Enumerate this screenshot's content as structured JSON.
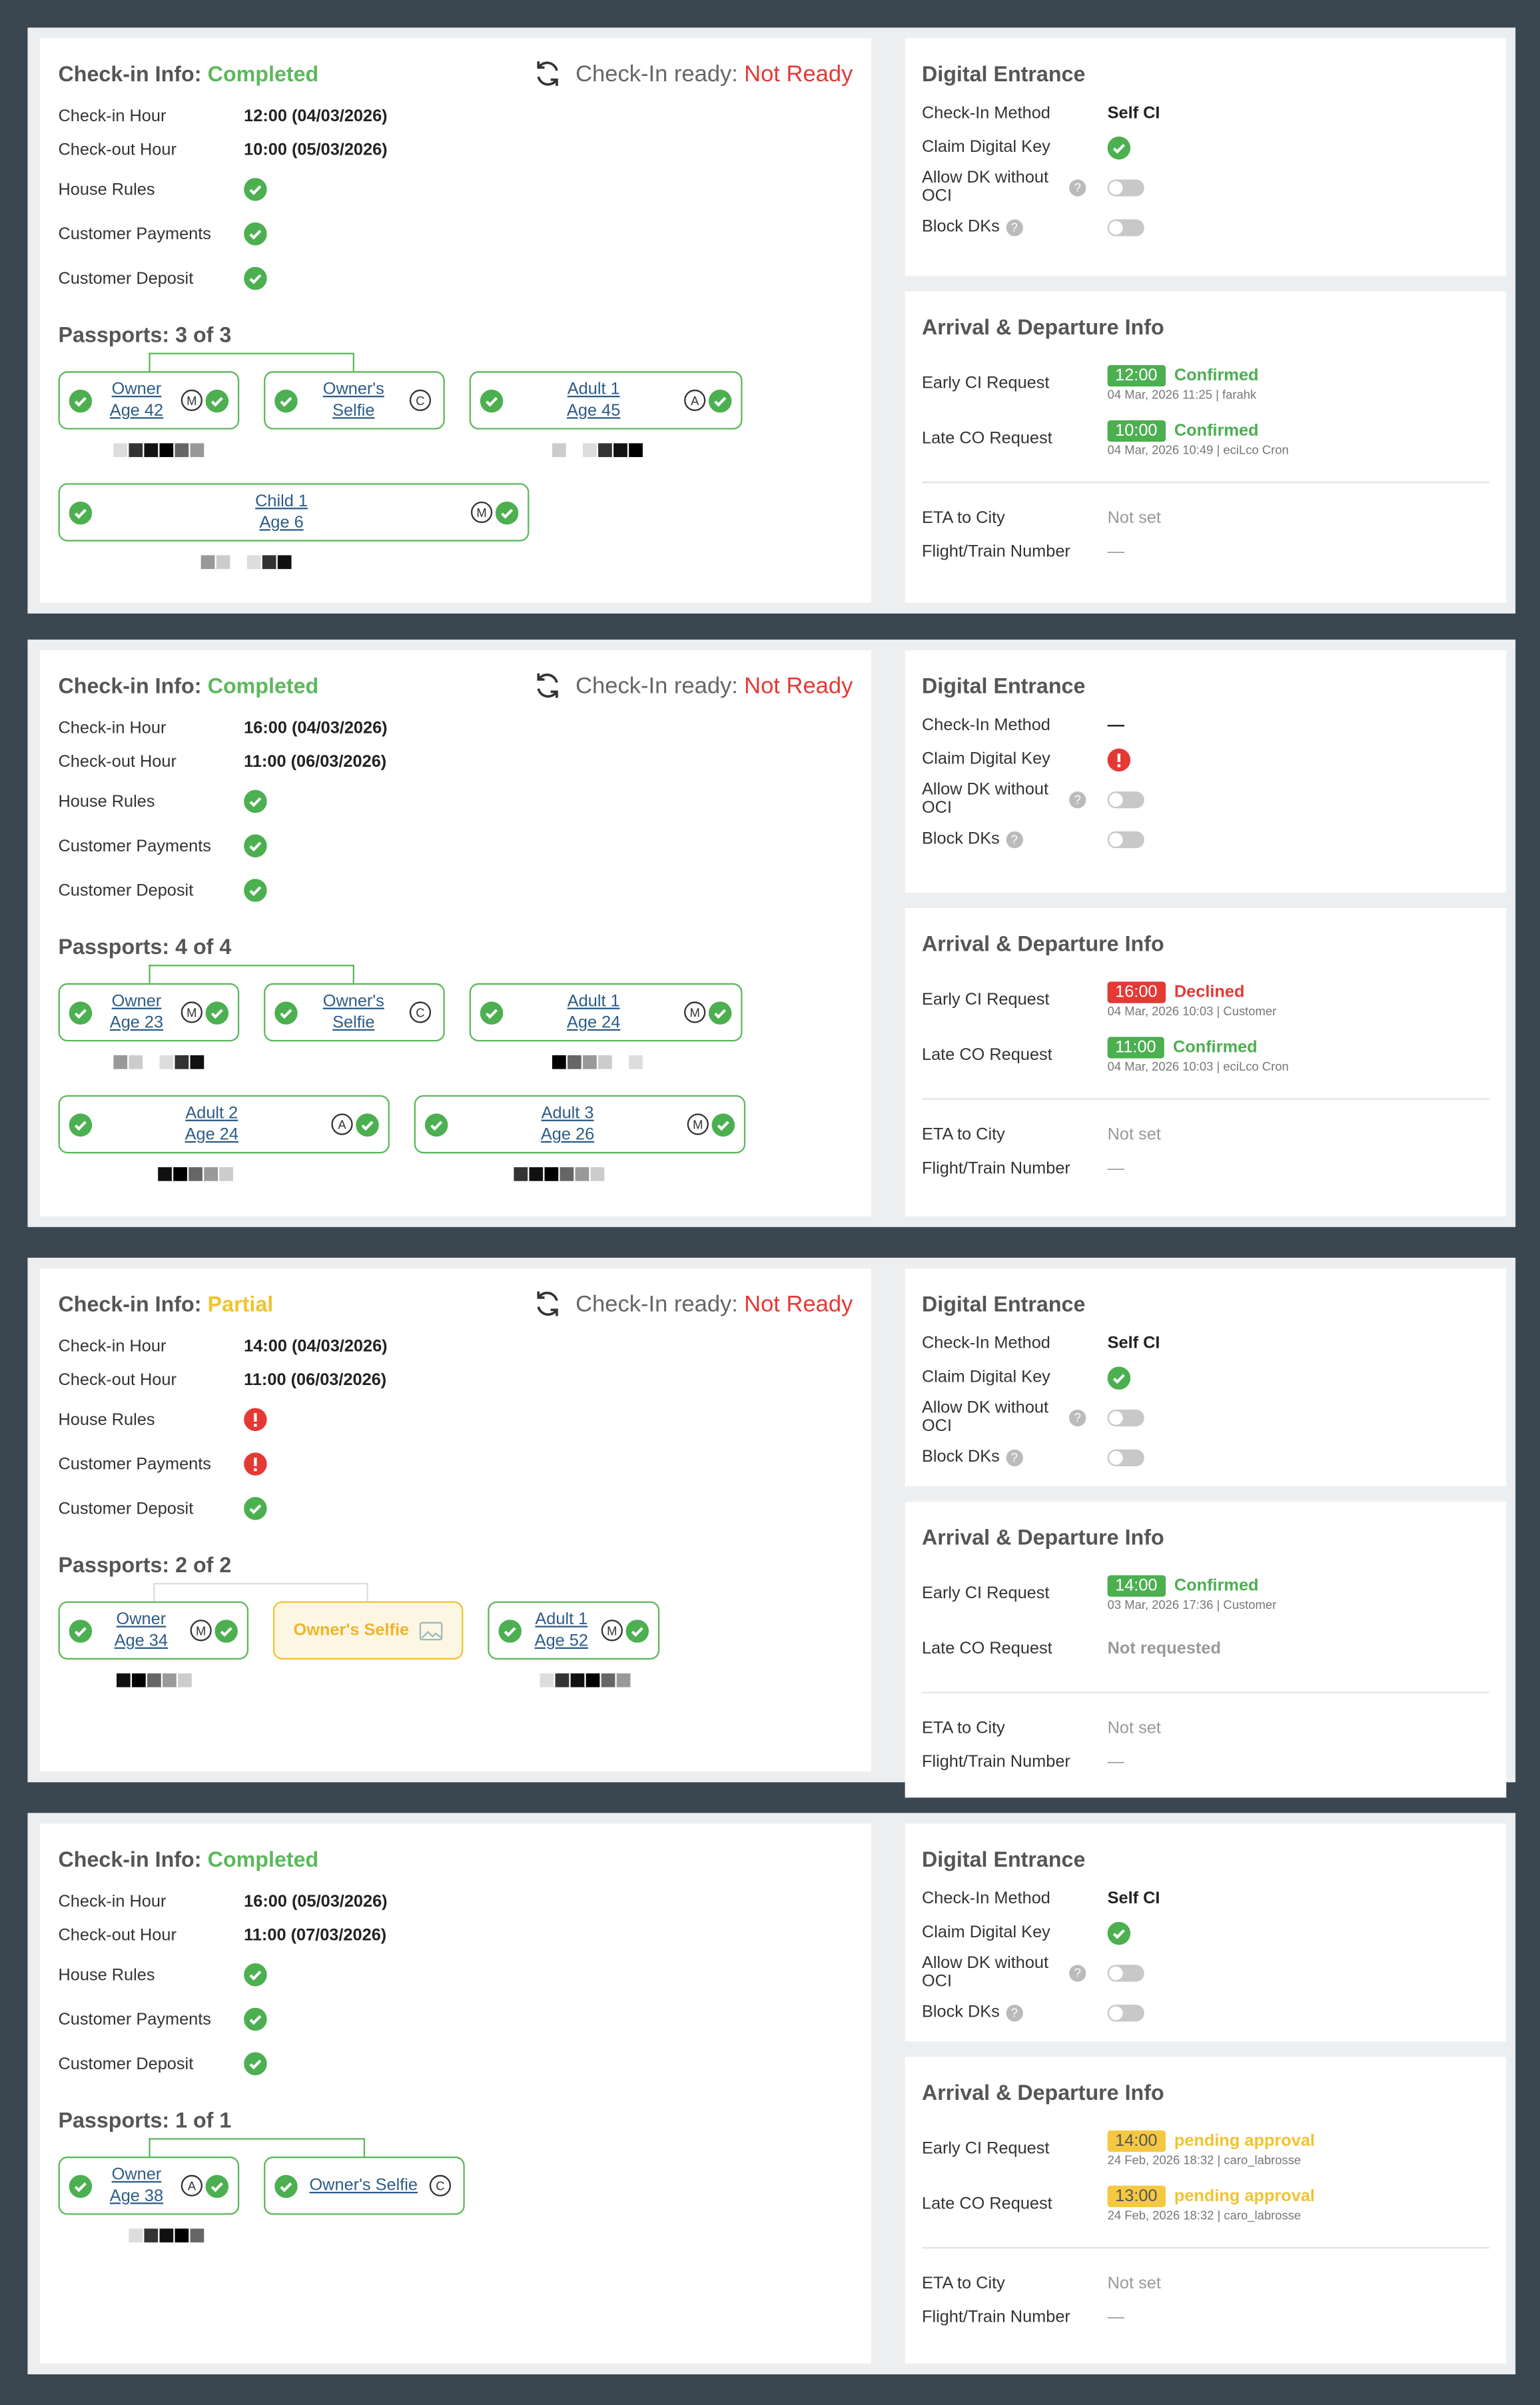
{
  "panels": [
    {
      "checkin": {
        "title": "Check-in Info:",
        "status": "Completed",
        "state": "completed",
        "ready": {
          "label": "Check-In ready:",
          "status": "Not Ready"
        },
        "hours": [
          {
            "label": "Check-in Hour",
            "value": "12:00 (04/03/2026)"
          },
          {
            "label": "Check-out Hour",
            "value": "10:00 (05/03/2026)"
          }
        ],
        "checks": [
          {
            "label": "House Rules",
            "state": "ok"
          },
          {
            "label": "Customer Payments",
            "state": "ok"
          },
          {
            "label": "Customer Deposit",
            "state": "ok"
          }
        ],
        "passports": {
          "title": "Passports: 3 of 3",
          "cards": [
            {
              "lines": [
                "Owner",
                "Age 42"
              ],
              "badge": "M",
              "kind": "person"
            },
            {
              "lines": [
                "Owner's",
                "Selfie"
              ],
              "badge": "C",
              "kind": "selfie"
            },
            {
              "lines": [
                "Adult 1",
                "Age 45"
              ],
              "badge": "A",
              "kind": "person"
            },
            {
              "lines": [
                "Child 1",
                "Age 6"
              ],
              "badge": "M",
              "kind": "person"
            }
          ]
        }
      },
      "digital_entrance": {
        "title": "Digital Entrance",
        "method": {
          "label": "Check-In Method",
          "value": "Self CI"
        },
        "claim": {
          "label": "Claim Digital Key",
          "state": "ok"
        },
        "toggles": [
          {
            "label": "Allow DK without OCI",
            "on": false
          },
          {
            "label": "Block DKs",
            "on": false
          }
        ]
      },
      "arrival": {
        "title": "Arrival & Departure Info",
        "requests": [
          {
            "label": "Early CI Request",
            "time": "12:00",
            "status": "Confirmed",
            "state": "confirmed",
            "meta": "04 Mar, 2026 11:25 | farahk"
          },
          {
            "label": "Late CO Request",
            "time": "10:00",
            "status": "Confirmed",
            "state": "confirmed",
            "meta": "04 Mar, 2026 10:49 | eciLco Cron"
          }
        ],
        "info": [
          {
            "label": "ETA to City",
            "value": "Not set"
          },
          {
            "label": "Flight/Train Number",
            "value": "—"
          }
        ]
      }
    },
    {
      "checkin": {
        "title": "Check-in Info:",
        "status": "Completed",
        "state": "completed",
        "ready": {
          "label": "Check-In ready:",
          "status": "Not Ready"
        },
        "hours": [
          {
            "label": "Check-in Hour",
            "value": "16:00 (04/03/2026)"
          },
          {
            "label": "Check-out Hour",
            "value": "11:00 (06/03/2026)"
          }
        ],
        "checks": [
          {
            "label": "House Rules",
            "state": "ok"
          },
          {
            "label": "Customer Payments",
            "state": "ok"
          },
          {
            "label": "Customer Deposit",
            "state": "ok"
          }
        ],
        "passports": {
          "title": "Passports: 4 of 4",
          "cards": [
            {
              "lines": [
                "Owner",
                "Age 23"
              ],
              "badge": "M",
              "kind": "person"
            },
            {
              "lines": [
                "Owner's",
                "Selfie"
              ],
              "badge": "C",
              "kind": "selfie"
            },
            {
              "lines": [
                "Adult 1",
                "Age 24"
              ],
              "badge": "M",
              "kind": "person"
            },
            {
              "lines": [
                "Adult 2",
                "Age 24"
              ],
              "badge": "A",
              "kind": "person"
            },
            {
              "lines": [
                "Adult 3",
                "Age 26"
              ],
              "badge": "M",
              "kind": "person"
            }
          ]
        }
      },
      "digital_entrance": {
        "title": "Digital Entrance",
        "method": {
          "label": "Check-In Method",
          "value": "—"
        },
        "claim": {
          "label": "Claim Digital Key",
          "state": "error"
        },
        "toggles": [
          {
            "label": "Allow DK without OCI",
            "on": false
          },
          {
            "label": "Block DKs",
            "on": false
          }
        ]
      },
      "arrival": {
        "title": "Arrival & Departure Info",
        "requests": [
          {
            "label": "Early CI Request",
            "time": "16:00",
            "status": "Declined",
            "state": "declined",
            "meta": "04 Mar, 2026 10:03 | Customer"
          },
          {
            "label": "Late CO Request",
            "time": "11:00",
            "status": "Confirmed",
            "state": "confirmed",
            "meta": "04 Mar, 2026 10:03 | eciLco Cron"
          }
        ],
        "info": [
          {
            "label": "ETA to City",
            "value": "Not set"
          },
          {
            "label": "Flight/Train Number",
            "value": "—"
          }
        ]
      }
    },
    {
      "checkin": {
        "title": "Check-in Info:",
        "status": "Partial",
        "state": "partial",
        "ready": {
          "label": "Check-In ready:",
          "status": "Not Ready"
        },
        "hours": [
          {
            "label": "Check-in Hour",
            "value": "14:00 (04/03/2026)"
          },
          {
            "label": "Check-out Hour",
            "value": "11:00 (06/03/2026)"
          }
        ],
        "checks": [
          {
            "label": "House Rules",
            "state": "error"
          },
          {
            "label": "Customer Payments",
            "state": "error"
          },
          {
            "label": "Customer Deposit",
            "state": "ok"
          }
        ],
        "passports": {
          "title": "Passports: 2 of 2",
          "cards": [
            {
              "lines": [
                "Owner",
                "Age 34"
              ],
              "badge": "M",
              "kind": "person"
            },
            {
              "lines": [
                "Owner's Selfie"
              ],
              "kind": "missing"
            },
            {
              "lines": [
                "Adult 1",
                "Age 52"
              ],
              "badge": "M",
              "kind": "person"
            }
          ]
        }
      },
      "digital_entrance": {
        "title": "Digital Entrance",
        "method": {
          "label": "Check-In Method",
          "value": "Self CI"
        },
        "claim": {
          "label": "Claim Digital Key",
          "state": "ok"
        },
        "toggles": [
          {
            "label": "Allow DK without OCI",
            "on": false
          },
          {
            "label": "Block DKs",
            "on": false
          }
        ]
      },
      "arrival": {
        "title": "Arrival & Departure Info",
        "requests": [
          {
            "label": "Early CI Request",
            "time": "14:00",
            "status": "Confirmed",
            "state": "confirmed",
            "meta": "03 Mar, 2026 17:36 | Customer"
          },
          {
            "label": "Late CO Request",
            "status": "Not requested",
            "state": "none"
          }
        ],
        "info": [
          {
            "label": "ETA to City",
            "value": "Not set"
          },
          {
            "label": "Flight/Train Number",
            "value": "—"
          }
        ]
      }
    },
    {
      "checkin": {
        "title": "Check-in Info:",
        "status": "Completed",
        "state": "completed",
        "hours": [
          {
            "label": "Check-in Hour",
            "value": "16:00 (05/03/2026)"
          },
          {
            "label": "Check-out Hour",
            "value": "11:00 (07/03/2026)"
          }
        ],
        "checks": [
          {
            "label": "House Rules",
            "state": "ok"
          },
          {
            "label": "Customer Payments",
            "state": "ok"
          },
          {
            "label": "Customer Deposit",
            "state": "ok"
          }
        ],
        "passports": {
          "title": "Passports: 1 of 1",
          "cards": [
            {
              "lines": [
                "Owner",
                "Age 38"
              ],
              "badge": "A",
              "kind": "person"
            },
            {
              "lines": [
                "Owner's Selfie"
              ],
              "badge": "C",
              "kind": "selfie"
            }
          ]
        }
      },
      "digital_entrance": {
        "title": "Digital Entrance",
        "method": {
          "label": "Check-In Method",
          "value": "Self CI"
        },
        "claim": {
          "label": "Claim Digital Key",
          "state": "ok"
        },
        "toggles": [
          {
            "label": "Allow DK without OCI",
            "on": false
          },
          {
            "label": "Block DKs",
            "on": false
          }
        ]
      },
      "arrival": {
        "title": "Arrival & Departure Info",
        "requests": [
          {
            "label": "Early CI Request",
            "time": "14:00",
            "status": "pending approval",
            "state": "pending",
            "meta": "24 Feb, 2026 18:32 | caro_labrosse"
          },
          {
            "label": "Late CO Request",
            "time": "13:00",
            "status": "pending approval",
            "state": "pending",
            "meta": "24 Feb, 2026 18:32 | caro_labrosse"
          }
        ],
        "info": [
          {
            "label": "ETA to City",
            "value": "Not set"
          },
          {
            "label": "Flight/Train Number",
            "value": "—"
          }
        ]
      }
    }
  ]
}
